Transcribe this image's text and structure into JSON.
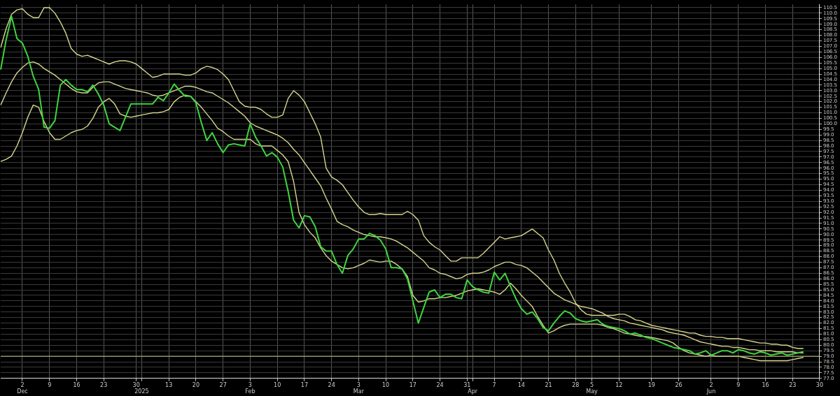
{
  "chart_data": {
    "type": "line",
    "categories": [
      null,
      null,
      null,
      null,
      "2\nDec",
      null,
      null,
      null,
      null,
      "9",
      null,
      null,
      null,
      null,
      "16",
      null,
      null,
      null,
      null,
      "23",
      null,
      null,
      null,
      null,
      null,
      "30",
      "\n2025",
      null,
      null,
      null,
      null,
      "13",
      null,
      null,
      null,
      null,
      "20",
      null,
      null,
      null,
      null,
      "27",
      null,
      null,
      null,
      null,
      "3\nFeb",
      null,
      null,
      null,
      null,
      "10",
      null,
      null,
      null,
      null,
      "17",
      null,
      null,
      null,
      null,
      "24",
      null,
      null,
      null,
      null,
      "3\nMar",
      null,
      null,
      null,
      null,
      "10",
      null,
      null,
      null,
      null,
      "17",
      null,
      null,
      null,
      null,
      "24",
      null,
      null,
      null,
      null,
      "31",
      "\nApr",
      null,
      null,
      null,
      "7",
      null,
      null,
      null,
      null,
      "14",
      null,
      null,
      null,
      null,
      "21",
      null,
      null,
      null,
      null,
      "28",
      null,
      null,
      "5\nMay",
      null,
      null,
      null,
      null,
      "12",
      null,
      null,
      null,
      null,
      null,
      "19",
      null,
      null,
      null,
      null,
      "26",
      null,
      null,
      null,
      null,
      null,
      "2\nJun",
      null,
      null,
      null,
      null,
      "9",
      null,
      null,
      null,
      null,
      "16",
      null,
      null,
      null,
      null,
      "23",
      null,
      null,
      null,
      null,
      "30"
    ],
    "series": [
      {
        "color": "#d6d690",
        "values": [
          106.9,
          108.6,
          109.9,
          110.3,
          110.4,
          109.9,
          109.6,
          109.6,
          110.5,
          110.5,
          110.0,
          109.2,
          108.2,
          106.8,
          106.3,
          106.1,
          106.2,
          106.0,
          105.8,
          105.6,
          105.4,
          105.6,
          105.7,
          105.7,
          105.6,
          105.4,
          105.0,
          104.6,
          104.2,
          104.3,
          104.5,
          104.5,
          104.5,
          104.5,
          104.4,
          104.4,
          104.6,
          105.0,
          105.2,
          105.1,
          104.9,
          104.5,
          104.0,
          103.0,
          102.0,
          101.6,
          101.5,
          101.5,
          101.3,
          100.9,
          100.6,
          100.6,
          100.8,
          102.3,
          103.0,
          102.6,
          102.0,
          101.0,
          100.0,
          98.8,
          96.0,
          95.2,
          94.9,
          94.5,
          93.8,
          93.1,
          92.5,
          92.0,
          91.8,
          91.8,
          91.9,
          91.8,
          91.8,
          91.8,
          91.8,
          92.1,
          91.8,
          91.3,
          89.9,
          89.3,
          88.9,
          88.6,
          88.1,
          87.6,
          87.6,
          87.9,
          87.9,
          87.9,
          87.9,
          88.3,
          88.8,
          89.3,
          89.8,
          89.6,
          89.7,
          89.8,
          89.9,
          90.2,
          90.5,
          90.1,
          89.7,
          88.6,
          87.7,
          86.5,
          85.6,
          84.8,
          83.8,
          83.2,
          82.8,
          82.7,
          82.7,
          82.7,
          82.7,
          82.7,
          82.8,
          82.8,
          82.6,
          82.3,
          82.2,
          82.0,
          81.8,
          81.7,
          81.6,
          81.5,
          81.4,
          81.3,
          81.2,
          81.1,
          81.1,
          80.9,
          80.8,
          80.8,
          80.7,
          80.7,
          80.6,
          80.6,
          80.6,
          80.5,
          80.4,
          80.3,
          80.2,
          80.2,
          80.1,
          80.1,
          80.0,
          80.0,
          79.8,
          79.7,
          79.7,
          null,
          null,
          null
        ]
      },
      {
        "color": "#d6d690",
        "values": [
          101.7,
          102.8,
          103.8,
          104.6,
          105.1,
          105.5,
          105.6,
          105.4,
          105.0,
          104.7,
          104.4,
          104.0,
          103.6,
          103.2,
          102.9,
          102.8,
          102.8,
          103.3,
          103.7,
          103.8,
          103.8,
          103.6,
          103.4,
          103.2,
          103.1,
          103.0,
          102.9,
          102.8,
          102.6,
          102.5,
          102.6,
          102.8,
          103.0,
          103.2,
          103.4,
          103.4,
          103.3,
          103.1,
          102.9,
          102.8,
          102.5,
          102.2,
          101.9,
          101.5,
          101.1,
          100.7,
          100.1,
          99.8,
          99.6,
          99.4,
          99.2,
          99.0,
          98.7,
          98.3,
          97.7,
          97.2,
          96.5,
          95.8,
          95.1,
          94.4,
          93.3,
          92.3,
          91.2,
          90.9,
          90.7,
          90.4,
          90.2,
          90.0,
          89.9,
          89.8,
          89.8,
          89.7,
          89.6,
          89.4,
          89.1,
          88.8,
          88.4,
          88.0,
          87.6,
          87.0,
          86.8,
          86.5,
          86.4,
          86.2,
          86.0,
          86.1,
          86.4,
          86.5,
          86.5,
          86.6,
          86.8,
          87.1,
          87.3,
          87.5,
          87.5,
          87.3,
          87.2,
          87.0,
          86.6,
          86.2,
          85.7,
          85.2,
          84.7,
          84.4,
          84.1,
          83.9,
          83.7,
          83.5,
          83.4,
          83.3,
          83.1,
          82.9,
          82.6,
          82.4,
          82.3,
          82.2,
          82.0,
          81.9,
          81.8,
          81.7,
          81.6,
          81.5,
          81.4,
          81.2,
          81.1,
          81.0,
          80.9,
          80.7,
          80.5,
          80.3,
          80.2,
          80.1,
          80.0,
          79.9,
          79.9,
          79.8,
          79.8,
          79.7,
          79.6,
          79.6,
          79.5,
          79.5,
          79.5,
          79.4,
          79.4,
          79.4,
          79.4,
          79.3,
          79.3,
          null,
          null,
          null
        ]
      },
      {
        "color": "#d6d690",
        "values": [
          96.6,
          96.8,
          97.1,
          98.0,
          99.2,
          100.6,
          101.7,
          101.5,
          100.2,
          99.2,
          98.6,
          98.6,
          98.9,
          99.2,
          99.4,
          99.5,
          99.8,
          100.5,
          101.5,
          102.0,
          102.3,
          101.8,
          100.9,
          100.7,
          100.6,
          100.7,
          100.8,
          100.9,
          101.0,
          101.0,
          101.1,
          101.3,
          102.0,
          102.4,
          102.6,
          102.5,
          102.0,
          101.5,
          100.9,
          100.3,
          99.6,
          99.3,
          98.9,
          98.6,
          98.6,
          98.6,
          98.6,
          98.2,
          98.0,
          98.0,
          98.0,
          97.6,
          97.2,
          96.6,
          94.8,
          92.0,
          90.9,
          90.2,
          89.7,
          88.8,
          88.1,
          87.6,
          87.3,
          87.0,
          86.9,
          87.0,
          87.2,
          87.4,
          87.7,
          87.6,
          87.5,
          87.6,
          87.6,
          87.3,
          86.9,
          86.2,
          84.5,
          83.9,
          84.0,
          84.2,
          84.2,
          84.3,
          84.3,
          84.4,
          84.5,
          84.7,
          84.9,
          85.0,
          85.1,
          85.0,
          84.9,
          84.8,
          84.6,
          85.0,
          85.6,
          85.1,
          84.5,
          84.0,
          83.5,
          82.6,
          81.8,
          81.1,
          81.3,
          81.6,
          81.8,
          81.9,
          81.9,
          81.9,
          81.9,
          81.9,
          81.9,
          81.8,
          81.6,
          81.5,
          81.3,
          81.1,
          81.0,
          80.9,
          80.8,
          80.8,
          80.7,
          80.6,
          80.5,
          80.4,
          80.2,
          79.8,
          79.5,
          79.3,
          79.2,
          79.1,
          79.0,
          79.1,
          79.0,
          79.0,
          79.0,
          79.0,
          79.0,
          78.9,
          78.8,
          78.7,
          78.6,
          78.6,
          78.6,
          78.6,
          78.6,
          78.6,
          78.7,
          78.8,
          78.9,
          null,
          null,
          null
        ]
      },
      {
        "color": "#3fd43f",
        "values": [
          104.9,
          107.6,
          109.7,
          107.7,
          107.3,
          106.1,
          104.3,
          103.1,
          99.7,
          99.6,
          100.3,
          103.5,
          104.0,
          103.5,
          103.1,
          103.1,
          102.9,
          103.5,
          102.7,
          101.7,
          100.0,
          99.7,
          99.4,
          100.6,
          101.8,
          101.8,
          101.8,
          101.8,
          101.8,
          102.4,
          102.1,
          102.8,
          103.6,
          103.0,
          102.5,
          102.5,
          101.9,
          100.1,
          98.5,
          99.2,
          98.2,
          97.4,
          98.1,
          98.2,
          98.1,
          98.0,
          100.0,
          98.8,
          98.0,
          97.1,
          97.4,
          97.0,
          96.1,
          93.9,
          91.3,
          90.6,
          91.7,
          91.6,
          90.7,
          88.9,
          88.5,
          88.5,
          87.3,
          86.5,
          88.1,
          88.7,
          89.6,
          89.6,
          90.1,
          89.9,
          89.5,
          88.7,
          87.0,
          87.0,
          86.9,
          86.0,
          84.0,
          82.0,
          83.4,
          84.8,
          85.0,
          84.3,
          84.6,
          84.6,
          84.3,
          84.2,
          85.9,
          85.3,
          85.0,
          84.8,
          84.7,
          86.6,
          85.9,
          86.5,
          85.3,
          84.2,
          83.3,
          82.8,
          83.0,
          82.4,
          81.6,
          81.3,
          82.0,
          82.6,
          83.1,
          82.9,
          82.4,
          82.2,
          82.1,
          82.2,
          82.3,
          81.9,
          81.7,
          81.6,
          81.5,
          81.3,
          81.0,
          81.1,
          80.9,
          80.7,
          80.6,
          80.4,
          80.2,
          80.0,
          79.8,
          79.7,
          79.6,
          79.5,
          79.2,
          79.3,
          79.5,
          79.1,
          79.3,
          79.5,
          79.5,
          79.3,
          79.6,
          79.5,
          79.3,
          79.2,
          79.4,
          79.3,
          79.1,
          79.2,
          79.3,
          79.1,
          79.2,
          79.3,
          79.4,
          null,
          null,
          null
        ]
      }
    ],
    "ylim": [
      77,
      110.8
    ],
    "yticks": [
      {
        "value": 77,
        "label": "77.0"
      },
      {
        "value": 77.5,
        "label": "77.5"
      },
      {
        "value": 78,
        "label": "78.0"
      },
      {
        "value": 78.5,
        "label": "78.5"
      },
      {
        "value": 79,
        "label": "79.0"
      },
      {
        "value": 79.5,
        "label": "79.5"
      },
      {
        "value": 80,
        "label": "80.0"
      },
      {
        "value": 80.5,
        "label": "80.5"
      },
      {
        "value": 81,
        "label": "81.0"
      },
      {
        "value": 81.5,
        "label": "81.5"
      },
      {
        "value": 82,
        "label": "82.0"
      },
      {
        "value": 82.5,
        "label": "82.5"
      },
      {
        "value": 83,
        "label": "83.0"
      },
      {
        "value": 83.5,
        "label": "83.5"
      },
      {
        "value": 84,
        "label": "84.0"
      },
      {
        "value": 84.5,
        "label": "84.5"
      },
      {
        "value": 85,
        "label": "85.0"
      },
      {
        "value": 85.5,
        "label": "85.5"
      },
      {
        "value": 86,
        "label": "86.0"
      },
      {
        "value": 86.5,
        "label": "86.5"
      },
      {
        "value": 87,
        "label": "87.0"
      },
      {
        "value": 87.5,
        "label": "87.5"
      },
      {
        "value": 88,
        "label": "88.0"
      },
      {
        "value": 88.5,
        "label": "88.5"
      },
      {
        "value": 89,
        "label": "89.0"
      },
      {
        "value": 89.5,
        "label": "89.5"
      },
      {
        "value": 90,
        "label": "90.0"
      },
      {
        "value": 90.5,
        "label": "90.5"
      },
      {
        "value": 91,
        "label": "91.0"
      },
      {
        "value": 91.5,
        "label": "91.5"
      },
      {
        "value": 92,
        "label": "92.0"
      },
      {
        "value": 92.5,
        "label": "92.5"
      },
      {
        "value": 93,
        "label": "93.0"
      },
      {
        "value": 93.5,
        "label": "93.5"
      },
      {
        "value": 94,
        "label": "94.0"
      },
      {
        "value": 94.5,
        "label": "94.5"
      },
      {
        "value": 95,
        "label": "95.0"
      },
      {
        "value": 95.5,
        "label": "95.5"
      },
      {
        "value": 96,
        "label": "96.0"
      },
      {
        "value": 96.5,
        "label": "96.5"
      },
      {
        "value": 97,
        "label": "97.0"
      },
      {
        "value": 97.5,
        "label": "97.5"
      },
      {
        "value": 98,
        "label": "98.0"
      },
      {
        "value": 98.5,
        "label": "98.5"
      },
      {
        "value": 99,
        "label": "99.0"
      },
      {
        "value": 99.5,
        "label": "99.5"
      },
      {
        "value": 100,
        "label": "100.0"
      },
      {
        "value": 100.5,
        "label": "100.5"
      },
      {
        "value": 101,
        "label": "101.0"
      },
      {
        "value": 101.5,
        "label": "101.5"
      },
      {
        "value": 102,
        "label": "102.0"
      },
      {
        "value": 102.5,
        "label": "102.5"
      },
      {
        "value": 103,
        "label": "103.0"
      },
      {
        "value": 103.5,
        "label": "103.5"
      },
      {
        "value": 104,
        "label": "104.0"
      },
      {
        "value": 104.5,
        "label": "104.5"
      },
      {
        "value": 105,
        "label": "105.0"
      },
      {
        "value": 105.5,
        "label": "105.5"
      },
      {
        "value": 106,
        "label": "106.0"
      },
      {
        "value": 106.5,
        "label": "106.5"
      },
      {
        "value": 107,
        "label": "107.0"
      },
      {
        "value": 107.5,
        "label": "107.5"
      },
      {
        "value": 108,
        "label": "108.0"
      },
      {
        "value": 108.5,
        "label": "108.5"
      },
      {
        "value": 109,
        "label": "109.0"
      },
      {
        "value": 109.5,
        "label": "109.5"
      },
      {
        "value": 110,
        "label": "110.0"
      },
      {
        "value": 110.5,
        "label": "110.5"
      }
    ],
    "ref_lines": [
      {
        "axis": "y",
        "value": 79.0,
        "color": "#c8c880",
        "line_style": "solid"
      }
    ],
    "grid": true,
    "legend": false,
    "marker": "none",
    "line_style": "solid"
  }
}
